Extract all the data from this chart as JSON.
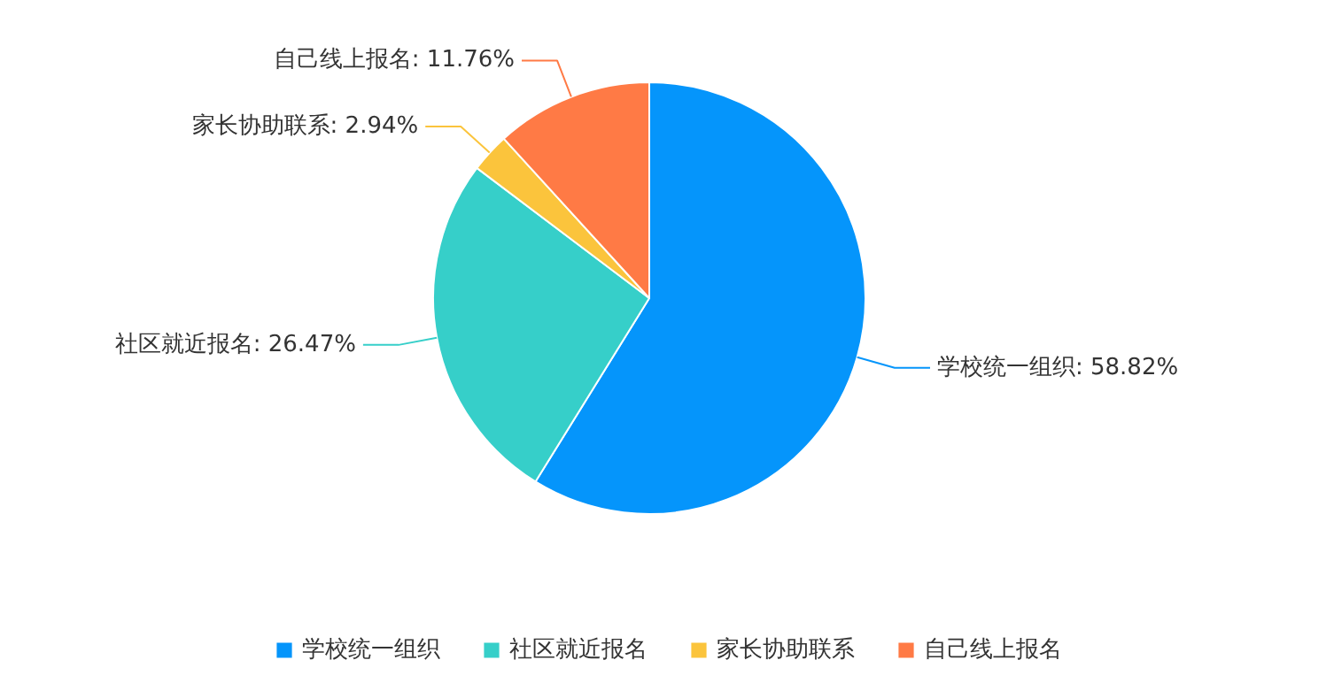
{
  "chart_data": {
    "type": "pie",
    "categories": [
      "学校统一组织",
      "社区就近报名",
      "家长协助联系",
      "自己线上报名"
    ],
    "values": [
      58.82,
      26.47,
      2.94,
      11.76
    ],
    "colors": [
      "#0595fb",
      "#36cfc9",
      "#fbc43c",
      "#ff7a45"
    ],
    "value_labels": [
      "学校统一组织: 58.82%",
      "社区就近报名: 26.47%",
      "家长协助联系: 2.94%",
      "自己线上报名: 11.76%"
    ],
    "legend": "bottom"
  }
}
